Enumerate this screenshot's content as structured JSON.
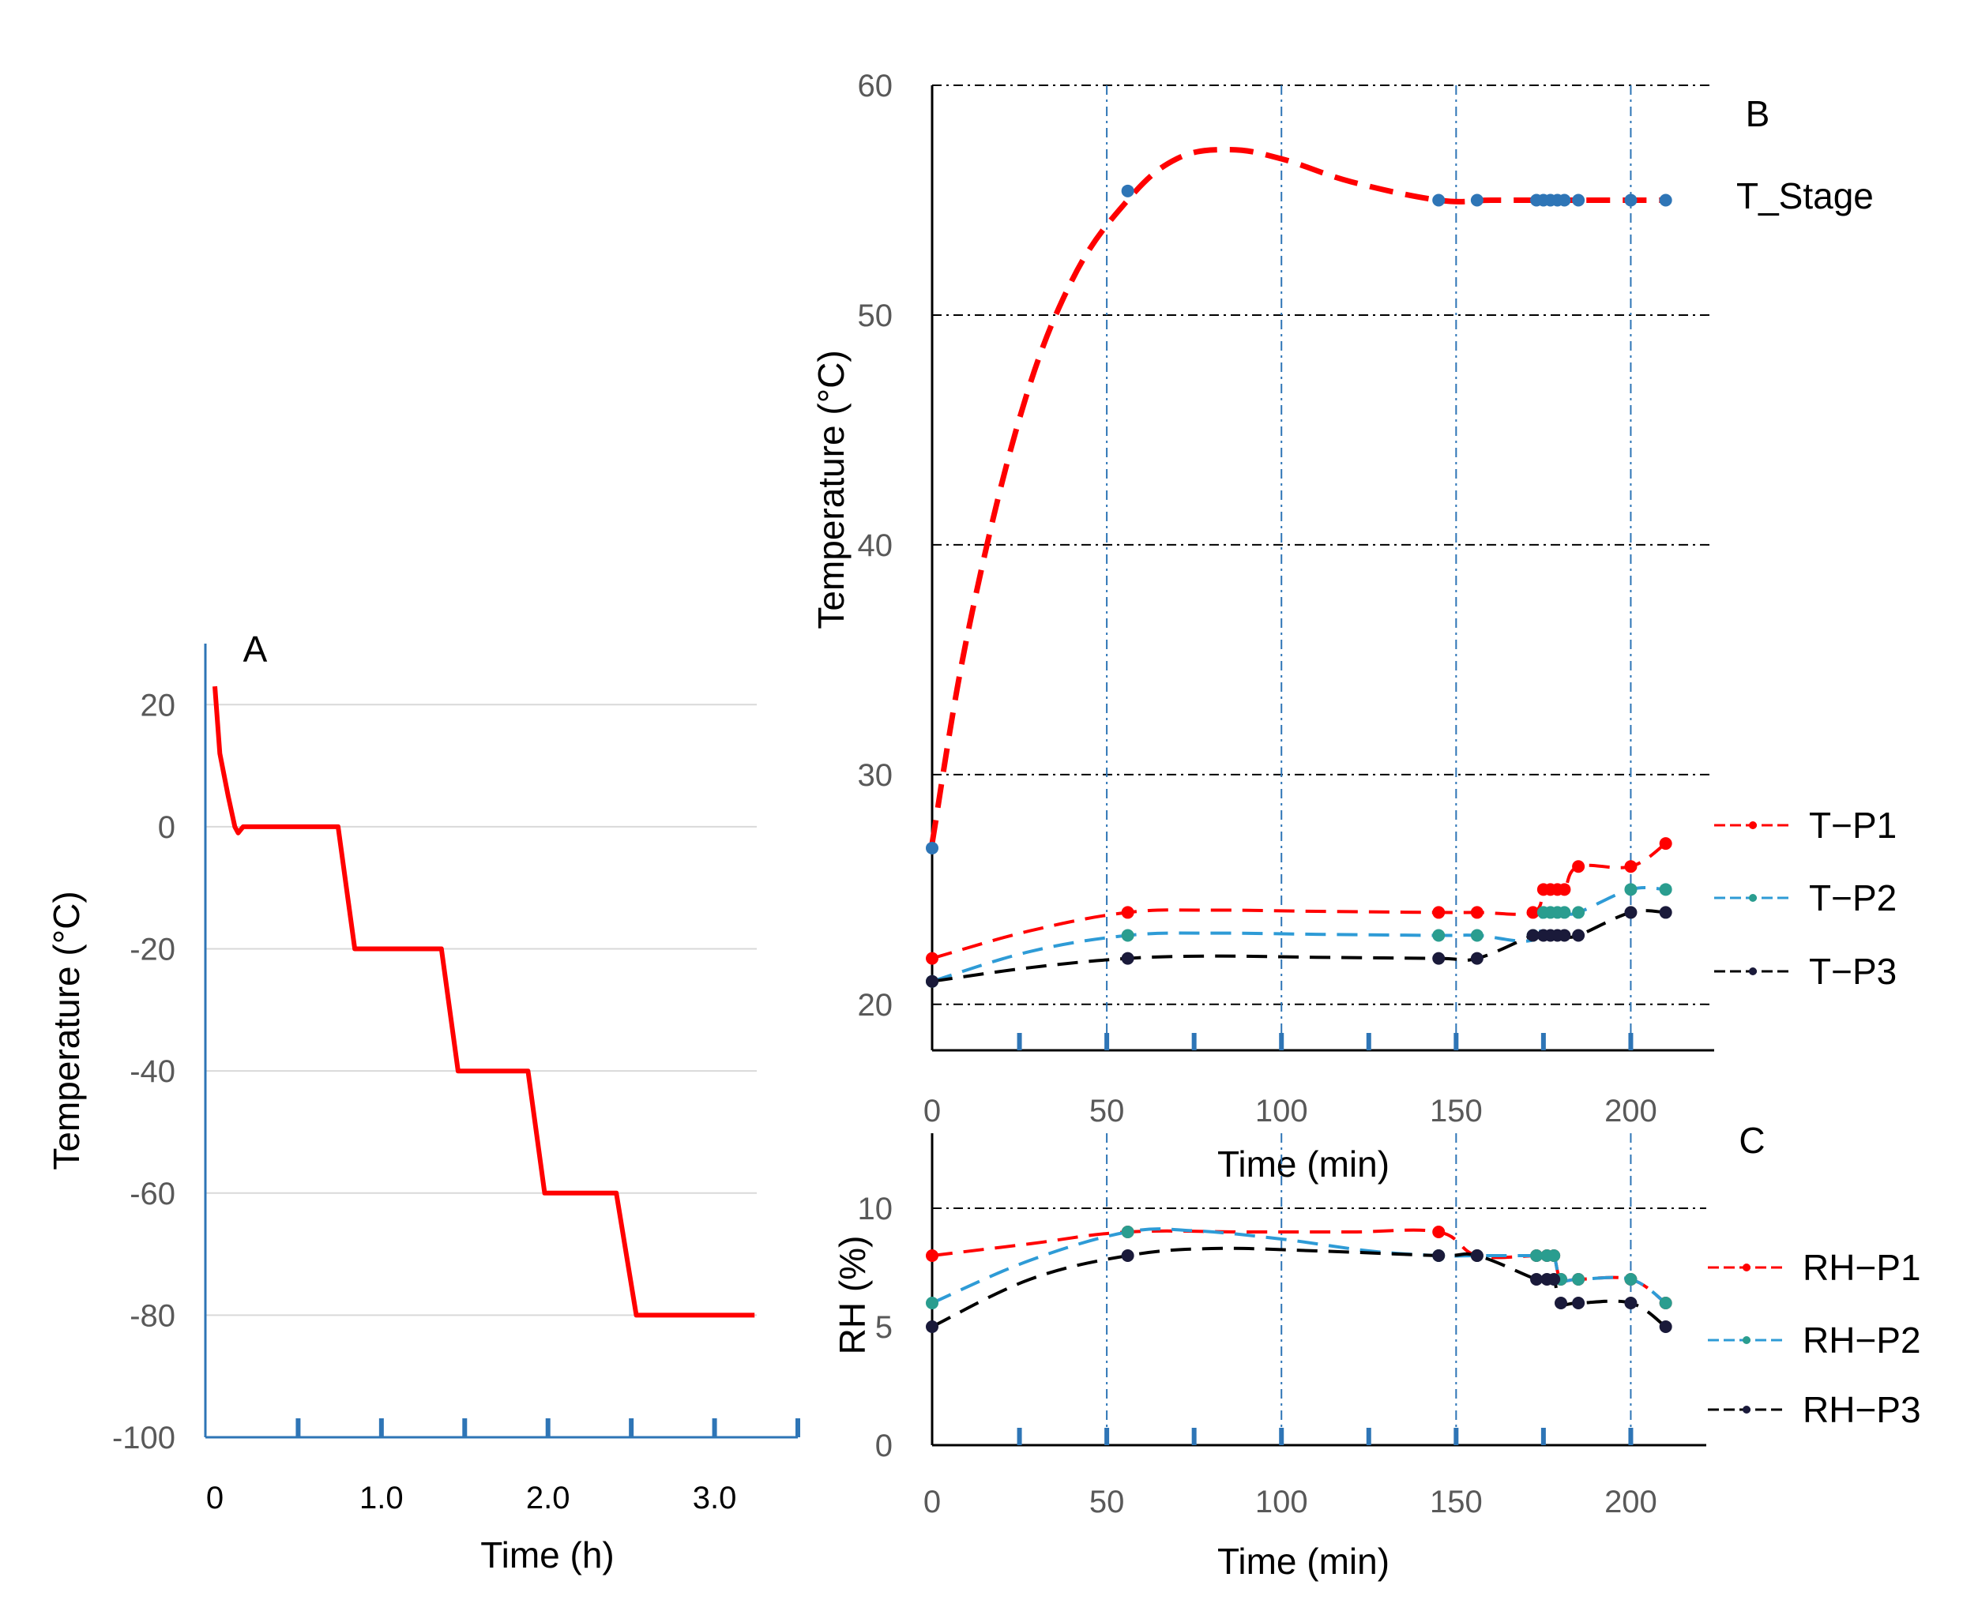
{
  "chart_data": [
    {
      "id": "A",
      "type": "line",
      "panel_label": "A",
      "xlabel": "Time (h)",
      "ylabel": "Temperature  (°C)",
      "xlim": [
        0,
        3.5
      ],
      "ylim": [
        -100,
        30
      ],
      "x_ticks": [
        0,
        1.0,
        2.0,
        3.0
      ],
      "x_tick_labels": [
        "0",
        "1.0",
        "2.0",
        "3.0"
      ],
      "y_ticks": [
        20,
        0,
        -20,
        -40,
        -60,
        -80,
        -100
      ],
      "y_tick_labels": [
        "20",
        "0",
        "-20",
        "-40",
        "-60",
        "-80",
        "-100"
      ],
      "gridlines": [
        20,
        0,
        -20,
        -40,
        -60,
        -80
      ],
      "series": [
        {
          "name": "Temperature",
          "color": "#ff0000",
          "x": [
            0.0,
            0.03,
            0.08,
            0.12,
            0.14,
            0.17,
            0.4,
            0.74,
            0.84,
            0.86,
            1.36,
            1.46,
            1.48,
            1.88,
            1.98,
            2.0,
            2.41,
            2.53,
            2.55,
            3.24
          ],
          "y": [
            23,
            12,
            5,
            0,
            -1,
            0,
            0,
            0,
            -20,
            -20,
            -20,
            -40,
            -40,
            -40,
            -60,
            -60,
            -60,
            -80,
            -80,
            -80
          ]
        }
      ]
    },
    {
      "id": "B",
      "type": "line",
      "panel_label": "B",
      "xlabel": "Time (min)",
      "ylabel": "Temperature  (°C)",
      "xlim": [
        0,
        225
      ],
      "ylim": [
        18,
        60
      ],
      "x_ticks": [
        0,
        50,
        100,
        150,
        200
      ],
      "x_tick_labels": [
        "0",
        "50",
        "100",
        "150",
        "200"
      ],
      "y_ticks": [
        20,
        30,
        40,
        50,
        60
      ],
      "y_tick_labels": [
        "20",
        "30",
        "40",
        "50",
        "60"
      ],
      "series": [
        {
          "name": "T_Stage",
          "color": "#ff0000",
          "marker_color": "#2e75b6",
          "curve_x": [
            0,
            10,
            25,
            40,
            56,
            70,
            85,
            100,
            120,
            145,
            160,
            175,
            200,
            210
          ],
          "curve_y": [
            27,
            36,
            45.5,
            51.5,
            55,
            56.8,
            57.2,
            56.8,
            55.8,
            55,
            55,
            55,
            55,
            55
          ],
          "marker_x": [
            0,
            56,
            145,
            156,
            173,
            175,
            177,
            179,
            181,
            185,
            200,
            210
          ],
          "marker_y": [
            26.8,
            55.4,
            55,
            55,
            55,
            55,
            55,
            55,
            55,
            55,
            55,
            55
          ]
        },
        {
          "name": "T−P1",
          "color": "#ff0000",
          "marker_color": "#ff0000",
          "x": [
            0,
            56,
            145,
            156,
            172,
            175,
            177,
            179,
            181,
            185,
            200,
            210
          ],
          "y": [
            22,
            24,
            24,
            24,
            24,
            25,
            25,
            25,
            25,
            26,
            26,
            27
          ],
          "curve_x": [
            0,
            28,
            56,
            80,
            110,
            145,
            156,
            172,
            175,
            178,
            181,
            185,
            200,
            210
          ],
          "curve_y": [
            22,
            23.2,
            24,
            24.1,
            24.05,
            24,
            24,
            24,
            25,
            25,
            25,
            26,
            26,
            27
          ]
        },
        {
          "name": "T−P2",
          "color": "#2e9bd6",
          "marker_color": "#2a9d8f",
          "x": [
            0,
            56,
            145,
            156,
            172,
            175,
            177,
            179,
            181,
            185,
            200,
            210
          ],
          "y": [
            21,
            23,
            23,
            23,
            23,
            24,
            24,
            24,
            24,
            24,
            25,
            25
          ],
          "curve_x": [
            0,
            28,
            56,
            80,
            110,
            145,
            156,
            172,
            175,
            178,
            181,
            185,
            200,
            210
          ],
          "curve_y": [
            21,
            22.3,
            23,
            23.1,
            23.05,
            23,
            23,
            22.8,
            24,
            24,
            24,
            24,
            25,
            25
          ]
        },
        {
          "name": "T−P3",
          "color": "#000000",
          "marker_color": "#1a1a3a",
          "x": [
            0,
            56,
            145,
            156,
            172,
            175,
            177,
            179,
            181,
            185,
            200,
            210
          ],
          "y": [
            21,
            22,
            22,
            22,
            23,
            23,
            23,
            23,
            23,
            23,
            24,
            24
          ],
          "curve_x": [
            0,
            28,
            56,
            80,
            110,
            145,
            156,
            172,
            175,
            178,
            181,
            185,
            200,
            210
          ],
          "curve_y": [
            21,
            21.6,
            22,
            22.1,
            22.05,
            22,
            22,
            23,
            23,
            23,
            23,
            23,
            24,
            24
          ]
        }
      ]
    },
    {
      "id": "C",
      "type": "line",
      "panel_label": "C",
      "xlabel": "Time (min)",
      "ylabel": "RH (%)",
      "xlim": [
        0,
        225
      ],
      "ylim": [
        0,
        13
      ],
      "x_ticks": [
        0,
        50,
        100,
        150,
        200
      ],
      "x_tick_labels": [
        "0",
        "50",
        "100",
        "150",
        "200"
      ],
      "y_ticks": [
        0,
        5,
        10
      ],
      "y_tick_labels": [
        "0",
        "5",
        "10"
      ],
      "series": [
        {
          "name": "RH−P1",
          "color": "#ff0000",
          "marker_color": "#ff0000",
          "x": [
            0,
            56,
            145,
            156,
            173,
            176,
            178,
            180,
            185,
            200,
            210
          ],
          "y": [
            8,
            9,
            9,
            8,
            8,
            8,
            8,
            7,
            7,
            7,
            6
          ],
          "curve_x": [
            0,
            28,
            56,
            90,
            120,
            145,
            156,
            173,
            176,
            178,
            180,
            185,
            200,
            210
          ],
          "curve_y": [
            8,
            8.5,
            9,
            9,
            9,
            9,
            8,
            8,
            8,
            8,
            7,
            7,
            7,
            6
          ]
        },
        {
          "name": "RH−P2",
          "color": "#2e9bd6",
          "marker_color": "#2a9d8f",
          "x": [
            0,
            56,
            145,
            156,
            173,
            176,
            178,
            180,
            185,
            200,
            210
          ],
          "y": [
            6,
            9,
            8,
            8,
            8,
            8,
            8,
            7,
            7,
            7,
            6
          ],
          "curve_x": [
            0,
            28,
            56,
            75,
            100,
            125,
            145,
            156,
            173,
            176,
            178,
            180,
            185,
            200,
            210
          ],
          "curve_y": [
            6,
            7.8,
            9,
            9.05,
            8.7,
            8.2,
            8,
            8,
            8,
            8,
            8,
            7,
            7,
            7,
            6
          ]
        },
        {
          "name": "RH−P3",
          "color": "#000000",
          "marker_color": "#1a1a3a",
          "x": [
            0,
            56,
            145,
            156,
            173,
            176,
            178,
            180,
            185,
            200,
            210
          ],
          "y": [
            5,
            8,
            8,
            8,
            7,
            7,
            7,
            6,
            6,
            6,
            5
          ],
          "curve_x": [
            0,
            28,
            56,
            80,
            110,
            145,
            156,
            173,
            176,
            178,
            180,
            185,
            200,
            210
          ],
          "curve_y": [
            5,
            7,
            8,
            8.3,
            8.2,
            8,
            8,
            7,
            7,
            7,
            6,
            6,
            6,
            5
          ]
        }
      ]
    }
  ]
}
